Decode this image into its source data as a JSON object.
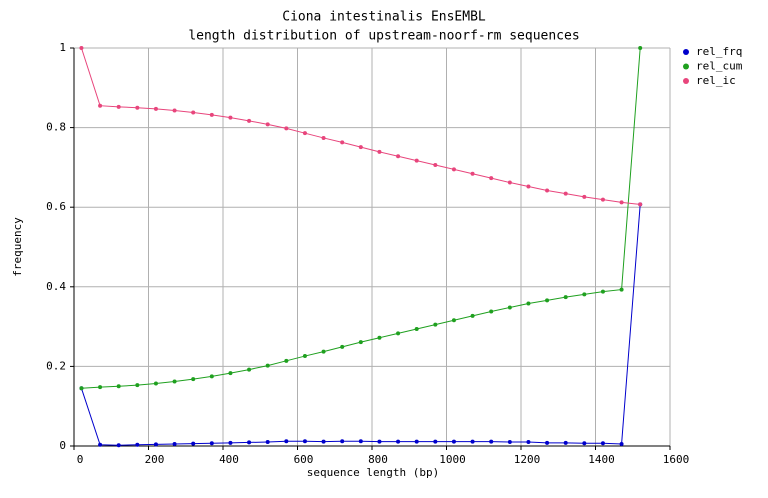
{
  "chart_data": {
    "type": "line",
    "title": "Ciona intestinalis EnsEMBL",
    "subtitle": "length distribution of upstream-noorf-rm sequences",
    "x_label": "sequence length (bp)",
    "y_label": "frequency",
    "x": [
      20,
      70,
      120,
      170,
      220,
      270,
      320,
      370,
      420,
      470,
      520,
      570,
      620,
      670,
      720,
      770,
      820,
      870,
      920,
      970,
      1020,
      1070,
      1120,
      1170,
      1220,
      1270,
      1320,
      1370,
      1420,
      1470,
      1520
    ],
    "series": [
      {
        "name": "rel_frq",
        "color": "#0000cc",
        "values": [
          0.145,
          0.003,
          0.002,
          0.003,
          0.004,
          0.005,
          0.006,
          0.007,
          0.008,
          0.009,
          0.01,
          0.012,
          0.012,
          0.011,
          0.012,
          0.012,
          0.011,
          0.011,
          0.011,
          0.011,
          0.011,
          0.011,
          0.011,
          0.01,
          0.01,
          0.008,
          0.008,
          0.007,
          0.007,
          0.005,
          0.607
        ]
      },
      {
        "name": "rel_cum",
        "color": "#1fa01f",
        "values": [
          0.145,
          0.148,
          0.15,
          0.153,
          0.157,
          0.162,
          0.168,
          0.175,
          0.183,
          0.192,
          0.202,
          0.214,
          0.226,
          0.237,
          0.249,
          0.261,
          0.272,
          0.283,
          0.294,
          0.305,
          0.316,
          0.327,
          0.338,
          0.348,
          0.358,
          0.366,
          0.374,
          0.381,
          0.388,
          0.393,
          1.0
        ]
      },
      {
        "name": "rel_ic",
        "color": "#e8457c",
        "values": [
          1.0,
          0.855,
          0.852,
          0.85,
          0.847,
          0.843,
          0.838,
          0.832,
          0.825,
          0.817,
          0.808,
          0.798,
          0.786,
          0.774,
          0.763,
          0.751,
          0.739,
          0.728,
          0.717,
          0.706,
          0.695,
          0.684,
          0.673,
          0.662,
          0.652,
          0.642,
          0.634,
          0.626,
          0.619,
          0.612,
          0.607
        ]
      }
    ],
    "xlim": [
      0,
      1600
    ],
    "xticks": [
      0,
      200,
      400,
      600,
      800,
      1000,
      1200,
      1400,
      1600
    ],
    "ylim": [
      0,
      1
    ],
    "yticks": [
      0,
      0.2,
      0.4,
      0.6,
      0.8,
      1
    ],
    "grid": true,
    "legend": "right"
  }
}
